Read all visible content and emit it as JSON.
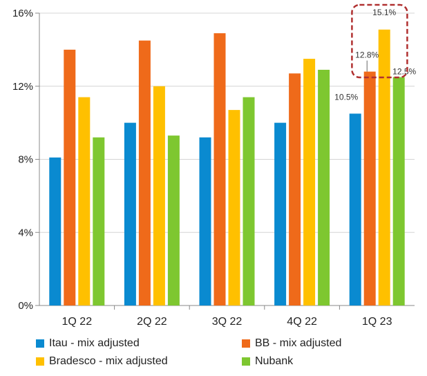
{
  "chart_data": {
    "type": "bar",
    "categories": [
      "1Q 22",
      "2Q 22",
      "3Q 22",
      "4Q 22",
      "1Q 23"
    ],
    "series": [
      {
        "name": "Itau - mix adjusted",
        "color": "#0a8ad0",
        "values": [
          8.1,
          10.0,
          9.2,
          10.0,
          10.5
        ]
      },
      {
        "name": "BB - mix adjusted",
        "color": "#ef6a1a",
        "values": [
          14.0,
          14.5,
          14.9,
          12.7,
          12.8
        ]
      },
      {
        "name": "Bradesco - mix adjusted",
        "color": "#ffc000",
        "values": [
          11.4,
          12.0,
          10.7,
          13.5,
          15.1
        ]
      },
      {
        "name": "Nubank",
        "color": "#7ec730",
        "values": [
          9.2,
          9.3,
          11.4,
          12.9,
          12.5
        ]
      }
    ],
    "y_ticks": [
      "0%",
      "4%",
      "8%",
      "12%",
      "16%"
    ],
    "ylim": [
      0,
      16
    ],
    "y_unit": "%",
    "grid": true,
    "legend_position": "bottom",
    "data_labels": [
      {
        "category": "1Q 23",
        "series": "Itau - mix adjusted",
        "text": "10.5%"
      },
      {
        "category": "1Q 23",
        "series": "BB - mix adjusted",
        "text": "12.8%"
      },
      {
        "category": "1Q 23",
        "series": "Bradesco - mix adjusted",
        "text": "15.1%"
      },
      {
        "category": "1Q 23",
        "series": "Nubank",
        "text": "12.5%"
      }
    ],
    "highlight": {
      "category": "1Q 23",
      "style": "dashed rounded box",
      "color": "#b03030"
    }
  }
}
